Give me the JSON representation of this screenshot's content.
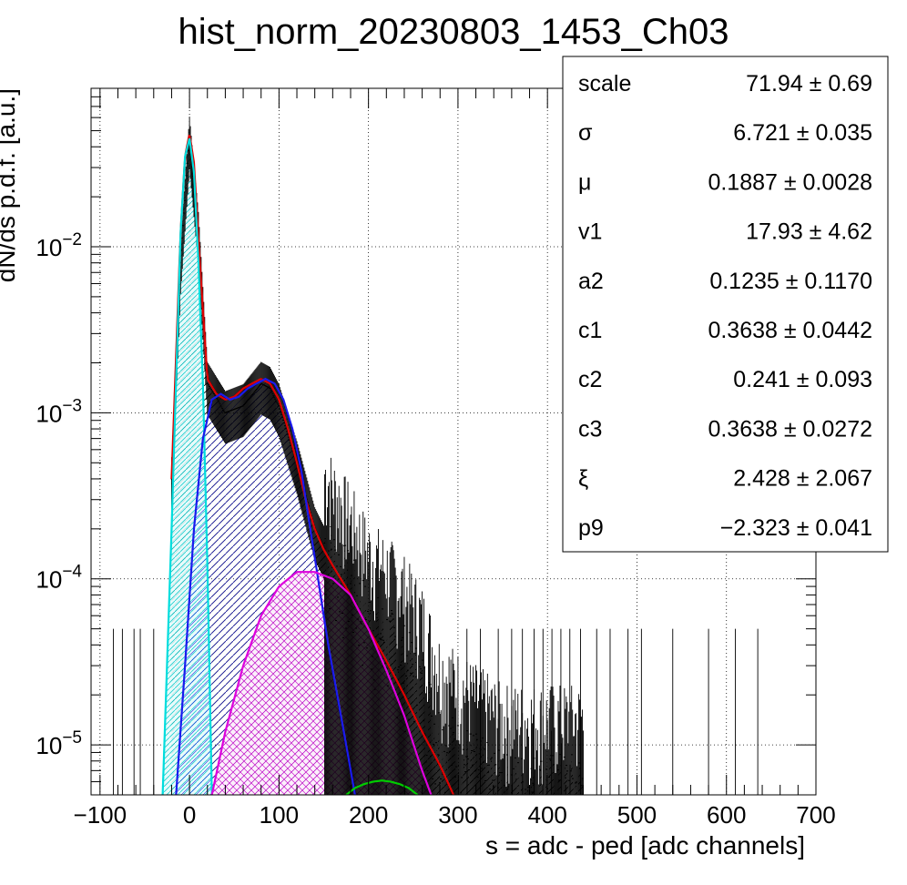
{
  "chart_data": {
    "type": "line",
    "title": "hist_norm_20230803_1453_Ch03",
    "xlabel": "s = adc - ped [adc channels]",
    "ylabel": "dN/ds p.d.f. [a.u.]",
    "x_scale": "linear",
    "y_scale": "log",
    "xlim": [
      -110,
      700
    ],
    "ylim": [
      5e-06,
      0.09
    ],
    "grid": true,
    "x_ticks": [
      -100,
      0,
      100,
      200,
      300,
      400,
      500,
      600,
      700
    ],
    "x_tick_labels": [
      "−100",
      "0",
      "100",
      "200",
      "300",
      "400",
      "500",
      "600",
      "700"
    ],
    "y_ticks": [
      {
        "value": 1e-05,
        "base": "10",
        "exp": "−5"
      },
      {
        "value": 0.0001,
        "base": "10",
        "exp": "−4"
      },
      {
        "value": 0.001,
        "base": "10",
        "exp": "−3"
      },
      {
        "value": 0.01,
        "base": "10",
        "exp": "−2"
      }
    ],
    "series": [
      {
        "color": "#000000",
        "style": "histogram",
        "x": [
          -20,
          -10,
          0,
          10,
          20,
          40,
          60,
          80,
          90,
          100,
          120,
          140,
          160,
          180,
          200,
          220,
          240,
          260,
          280,
          300,
          350,
          400,
          440
        ],
        "y": [
          0.0004,
          0.008,
          0.045,
          0.012,
          0.0015,
          0.001,
          0.0011,
          0.0015,
          0.0014,
          0.0011,
          0.0005,
          0.0002,
          0.00012,
          8e-05,
          5e-05,
          4e-05,
          3e-05,
          2e-05,
          1e-05,
          8e-06,
          5e-06,
          5e-06,
          5e-06
        ]
      },
      {
        "color": "#dd0000",
        "style": "line",
        "x": [
          -20,
          -10,
          -5,
          0,
          5,
          10,
          20,
          30,
          40,
          50,
          60,
          70,
          80,
          90,
          100,
          110,
          120,
          130,
          140,
          150,
          160,
          180,
          200,
          220,
          240,
          260,
          280,
          295
        ],
        "y": [
          0.0004,
          0.012,
          0.035,
          0.048,
          0.032,
          0.011,
          0.0016,
          0.0013,
          0.0012,
          0.00125,
          0.0014,
          0.0015,
          0.0016,
          0.0015,
          0.0012,
          0.0008,
          0.0005,
          0.0003,
          0.0002,
          0.00015,
          0.00012,
          8e-05,
          5e-05,
          3.2e-05,
          2e-05,
          1.2e-05,
          7.5e-06,
          5e-06
        ]
      },
      {
        "color": "#00dddd",
        "style": "line",
        "x": [
          -30,
          -20,
          -10,
          -5,
          0,
          5,
          10,
          15,
          20,
          25
        ],
        "y": [
          5e-06,
          0.0002,
          0.012,
          0.035,
          0.045,
          0.028,
          0.008,
          0.0015,
          0.00012,
          5e-06
        ]
      },
      {
        "color": "#1a1aee",
        "style": "line",
        "x": [
          -15,
          -5,
          5,
          15,
          25,
          35,
          45,
          55,
          65,
          75,
          85,
          95,
          105,
          115,
          125,
          135,
          145,
          155,
          165,
          175,
          185
        ],
        "y": [
          5e-06,
          3e-05,
          0.0002,
          0.0007,
          0.0012,
          0.0013,
          0.0012,
          0.00125,
          0.0014,
          0.0015,
          0.0016,
          0.0015,
          0.0012,
          0.0008,
          0.00045,
          0.0002,
          9e-05,
          4e-05,
          2e-05,
          1e-05,
          5e-06
        ]
      },
      {
        "color": "#dd00dd",
        "style": "line",
        "x": [
          25,
          40,
          60,
          80,
          100,
          120,
          140,
          160,
          180,
          200,
          220,
          240,
          260,
          270
        ],
        "y": [
          5e-06,
          1.2e-05,
          3e-05,
          6e-05,
          9e-05,
          0.00011,
          0.00011,
          0.0001,
          8e-05,
          5e-05,
          2.8e-05,
          1.5e-05,
          7e-06,
          5e-06
        ]
      },
      {
        "color": "#00cc00",
        "style": "line",
        "x": [
          175,
          185,
          195,
          205,
          215,
          225,
          235,
          245,
          255
        ],
        "y": [
          5e-06,
          5.5e-06,
          5.8e-06,
          6e-06,
          6.1e-06,
          6e-06,
          5.8e-06,
          5.5e-06,
          5e-06
        ]
      }
    ]
  },
  "stats": [
    {
      "label": "scale",
      "value": "71.94 ± 0.69"
    },
    {
      "label": "σ",
      "value": "6.721 ± 0.035"
    },
    {
      "label": "μ",
      "value": "0.1887 ± 0.0028"
    },
    {
      "label": "v1",
      "value": "17.93 ± 4.62"
    },
    {
      "label": "a2",
      "value": "0.1235 ± 0.1170"
    },
    {
      "label": "c1",
      "value": "0.3638 ± 0.0442"
    },
    {
      "label": "c2",
      "value": "0.241 ± 0.093"
    },
    {
      "label": "c3",
      "value": "0.3638 ± 0.0272"
    },
    {
      "label": "ξ",
      "value": "2.428 ± 2.067"
    },
    {
      "label": "p9",
      "value": "−2.323 ± 0.041"
    }
  ]
}
